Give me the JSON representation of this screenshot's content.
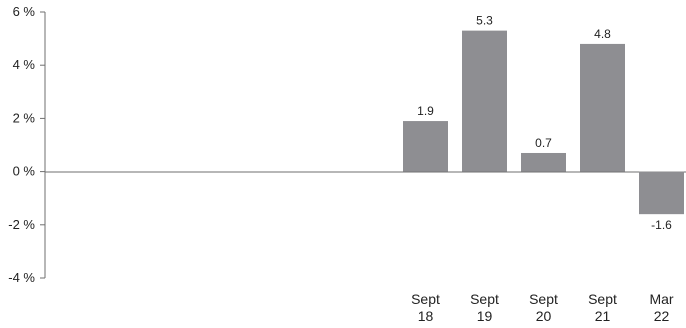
{
  "chart_data": {
    "type": "bar",
    "categories": [
      [
        "Sept",
        "18"
      ],
      [
        "Sept",
        "19"
      ],
      [
        "Sept",
        "20"
      ],
      [
        "Sept",
        "21"
      ],
      [
        "Mar",
        "22"
      ]
    ],
    "values": [
      1.9,
      5.3,
      0.7,
      4.8,
      -1.6
    ],
    "data_labels": [
      "1.9",
      "5.3",
      "0.7",
      "4.8",
      "-1.6"
    ],
    "y_ticks": [
      -4,
      -2,
      0,
      2,
      4,
      6
    ],
    "y_tick_labels": [
      "-4 %",
      "-2 %",
      "0 %",
      "2 %",
      "4 %",
      "6 %"
    ],
    "ylim": [
      -4,
      6
    ],
    "grid": false,
    "title": "",
    "xlabel": "",
    "ylabel": "",
    "bar_color": "#8e8e92",
    "axis_color": "#6f6f6f"
  }
}
